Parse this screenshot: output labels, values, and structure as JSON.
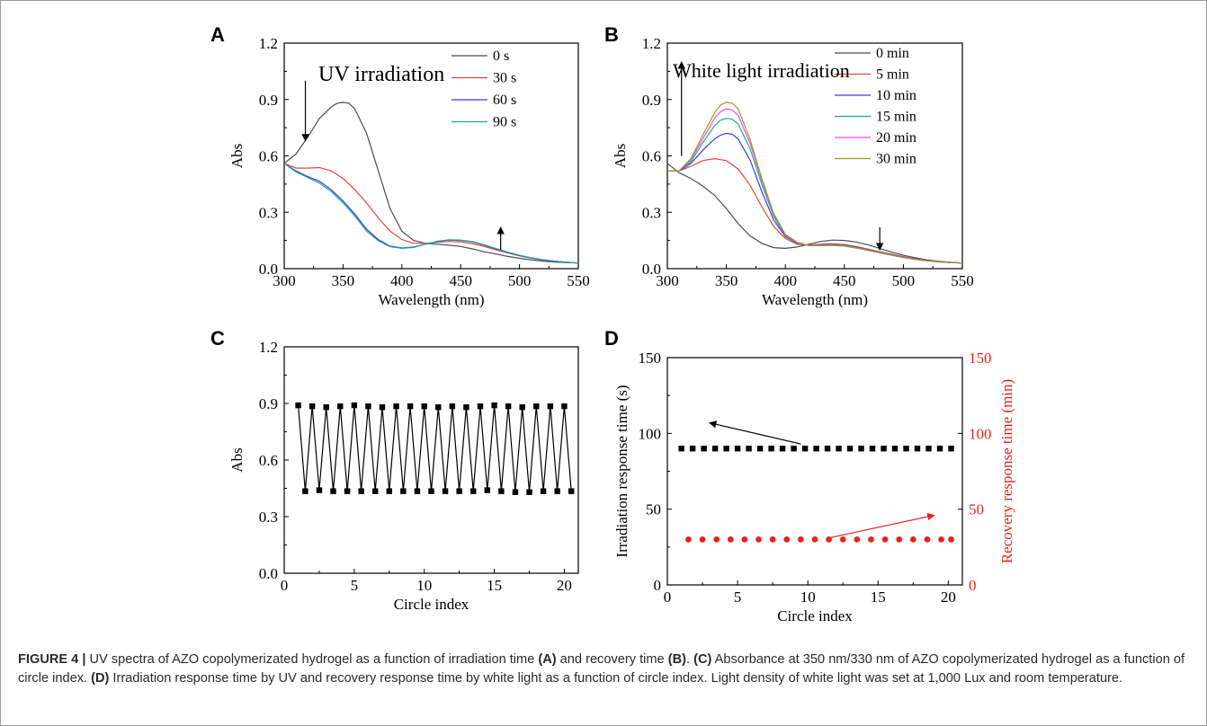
{
  "caption": {
    "label": "FIGURE 4 |",
    "segments": [
      {
        "t": "UV spectra of AZO copolymerizated hydrogel as a function of irradiation time ",
        "b": false
      },
      {
        "t": "(A)",
        "b": true
      },
      {
        "t": " and recovery time ",
        "b": false
      },
      {
        "t": "(B)",
        "b": true
      },
      {
        "t": ". ",
        "b": false
      },
      {
        "t": "(C)",
        "b": true
      },
      {
        "t": " Absorbance at 350 nm/330 nm of AZO copolymerizated hydrogel as a function of circle index. ",
        "b": false
      },
      {
        "t": "(D)",
        "b": true
      },
      {
        "t": " Irradiation response time by UV and recovery response time by white light as a function of circle index. Light density of white light was set at 1,000 Lux and room temperature.",
        "b": false
      }
    ]
  },
  "chart_data": [
    {
      "panel": "A",
      "type": "line",
      "annotation": "UV irradiation",
      "xlabel": "Wavelength (nm)",
      "ylabel": "Abs",
      "xlim": [
        300,
        550
      ],
      "ylim": [
        0,
        1.2
      ],
      "xticks": [
        300,
        350,
        400,
        450,
        500,
        550
      ],
      "yticks": [
        "0.0",
        "0.3",
        "0.6",
        "0.9",
        "1.2"
      ],
      "legend_position": "top-right",
      "arrows": [
        {
          "direction": "down",
          "x": 318,
          "y_from": 1.0,
          "y_to": 0.68
        },
        {
          "direction": "up",
          "x": 484,
          "y_from": 0.1,
          "y_to": 0.22
        }
      ],
      "series": [
        {
          "name": "0 s",
          "color": "#4d4d4d",
          "x": [
            300,
            310,
            320,
            330,
            340,
            345,
            350,
            355,
            360,
            370,
            380,
            390,
            400,
            410,
            420,
            430,
            440,
            450,
            460,
            470,
            480,
            490,
            500,
            510,
            520,
            530,
            540,
            550
          ],
          "y": [
            0.56,
            0.61,
            0.7,
            0.8,
            0.86,
            0.88,
            0.885,
            0.88,
            0.85,
            0.72,
            0.52,
            0.32,
            0.2,
            0.15,
            0.135,
            0.13,
            0.125,
            0.118,
            0.105,
            0.09,
            0.078,
            0.065,
            0.055,
            0.047,
            0.04,
            0.035,
            0.032,
            0.03
          ]
        },
        {
          "name": "30 s",
          "color": "#e8453c",
          "x": [
            300,
            310,
            320,
            330,
            340,
            350,
            360,
            370,
            380,
            390,
            400,
            410,
            420,
            430,
            440,
            450,
            460,
            470,
            480,
            490,
            500,
            510,
            520,
            530,
            540,
            550
          ],
          "y": [
            0.56,
            0.535,
            0.535,
            0.538,
            0.52,
            0.48,
            0.42,
            0.35,
            0.27,
            0.2,
            0.155,
            0.135,
            0.135,
            0.14,
            0.145,
            0.142,
            0.133,
            0.118,
            0.1,
            0.083,
            0.068,
            0.056,
            0.046,
            0.039,
            0.034,
            0.03
          ]
        },
        {
          "name": "60 s",
          "color": "#3a3ae0",
          "x": [
            300,
            310,
            320,
            330,
            340,
            350,
            360,
            370,
            380,
            390,
            400,
            410,
            420,
            430,
            440,
            450,
            460,
            470,
            480,
            490,
            500,
            510,
            520,
            530,
            540,
            550
          ],
          "y": [
            0.56,
            0.52,
            0.49,
            0.465,
            0.42,
            0.36,
            0.29,
            0.21,
            0.155,
            0.12,
            0.11,
            0.115,
            0.13,
            0.145,
            0.152,
            0.15,
            0.142,
            0.125,
            0.105,
            0.087,
            0.07,
            0.057,
            0.047,
            0.04,
            0.034,
            0.03
          ]
        },
        {
          "name": "90 s",
          "color": "#1ea89a",
          "x": [
            300,
            310,
            320,
            330,
            340,
            350,
            360,
            370,
            380,
            390,
            400,
            410,
            420,
            430,
            440,
            450,
            460,
            470,
            480,
            490,
            500,
            510,
            520,
            530,
            540,
            550
          ],
          "y": [
            0.56,
            0.515,
            0.485,
            0.455,
            0.41,
            0.35,
            0.28,
            0.2,
            0.148,
            0.117,
            0.108,
            0.113,
            0.13,
            0.146,
            0.154,
            0.152,
            0.144,
            0.127,
            0.107,
            0.088,
            0.071,
            0.058,
            0.048,
            0.04,
            0.034,
            0.03
          ]
        }
      ]
    },
    {
      "panel": "B",
      "type": "line",
      "annotation": "White light irradiation",
      "xlabel": "Wavelength (nm)",
      "ylabel": "Abs",
      "xlim": [
        300,
        550
      ],
      "ylim": [
        0,
        1.2
      ],
      "xticks": [
        300,
        350,
        400,
        450,
        500,
        550
      ],
      "yticks": [
        "0.0",
        "0.3",
        "0.6",
        "0.9",
        "1.2"
      ],
      "legend_position": "top-right",
      "arrows": [
        {
          "direction": "up",
          "x": 312,
          "y_from": 0.6,
          "y_to": 1.1
        },
        {
          "direction": "down",
          "x": 480,
          "y_from": 0.22,
          "y_to": 0.1
        }
      ],
      "series": [
        {
          "name": "0 min",
          "color": "#4d4d4d",
          "x": [
            300,
            310,
            320,
            330,
            340,
            350,
            360,
            370,
            380,
            390,
            400,
            410,
            420,
            430,
            440,
            450,
            460,
            470,
            480,
            490,
            500,
            510,
            520,
            530,
            540,
            550
          ],
          "y": [
            0.56,
            0.51,
            0.48,
            0.44,
            0.39,
            0.32,
            0.24,
            0.175,
            0.135,
            0.112,
            0.108,
            0.115,
            0.13,
            0.145,
            0.152,
            0.15,
            0.142,
            0.127,
            0.107,
            0.088,
            0.071,
            0.058,
            0.047,
            0.039,
            0.034,
            0.03
          ]
        },
        {
          "name": "5 min",
          "color": "#e8453c",
          "x": [
            300,
            310,
            320,
            330,
            340,
            350,
            360,
            370,
            380,
            390,
            400,
            410,
            420,
            430,
            440,
            450,
            460,
            470,
            480,
            490,
            500,
            510,
            520,
            530,
            540,
            550
          ],
          "y": [
            0.52,
            0.52,
            0.545,
            0.575,
            0.585,
            0.575,
            0.53,
            0.445,
            0.33,
            0.225,
            0.16,
            0.13,
            0.125,
            0.13,
            0.132,
            0.128,
            0.118,
            0.104,
            0.09,
            0.077,
            0.064,
            0.053,
            0.044,
            0.037,
            0.033,
            0.03
          ]
        },
        {
          "name": "10 min",
          "color": "#3a3ae0",
          "x": [
            300,
            310,
            320,
            330,
            340,
            345,
            350,
            355,
            360,
            370,
            380,
            390,
            400,
            410,
            420,
            430,
            440,
            450,
            460,
            470,
            480,
            490,
            500,
            510,
            520,
            530,
            540,
            550
          ],
          "y": [
            0.52,
            0.52,
            0.56,
            0.63,
            0.69,
            0.71,
            0.72,
            0.715,
            0.69,
            0.58,
            0.41,
            0.26,
            0.17,
            0.135,
            0.125,
            0.127,
            0.128,
            0.124,
            0.114,
            0.1,
            0.087,
            0.074,
            0.062,
            0.052,
            0.043,
            0.037,
            0.033,
            0.03
          ]
        },
        {
          "name": "15 min",
          "color": "#1ea89a",
          "x": [
            300,
            310,
            320,
            330,
            340,
            345,
            350,
            355,
            360,
            370,
            380,
            390,
            400,
            410,
            420,
            430,
            440,
            450,
            460,
            470,
            480,
            490,
            500,
            510,
            520,
            530,
            540,
            550
          ],
          "y": [
            0.52,
            0.52,
            0.57,
            0.67,
            0.76,
            0.79,
            0.8,
            0.795,
            0.77,
            0.64,
            0.45,
            0.28,
            0.175,
            0.137,
            0.124,
            0.125,
            0.126,
            0.122,
            0.112,
            0.099,
            0.086,
            0.073,
            0.061,
            0.051,
            0.043,
            0.037,
            0.033,
            0.03
          ]
        },
        {
          "name": "20 min",
          "color": "#f04ce8",
          "x": [
            300,
            310,
            320,
            330,
            340,
            345,
            350,
            355,
            360,
            370,
            380,
            390,
            400,
            410,
            420,
            430,
            440,
            450,
            460,
            470,
            480,
            490,
            500,
            510,
            520,
            530,
            540,
            550
          ],
          "y": [
            0.52,
            0.52,
            0.58,
            0.69,
            0.8,
            0.835,
            0.85,
            0.845,
            0.815,
            0.67,
            0.47,
            0.29,
            0.18,
            0.139,
            0.124,
            0.124,
            0.125,
            0.121,
            0.111,
            0.098,
            0.085,
            0.072,
            0.06,
            0.05,
            0.042,
            0.036,
            0.033,
            0.03
          ]
        },
        {
          "name": "30 min",
          "color": "#9a9a22",
          "x": [
            300,
            310,
            320,
            330,
            340,
            345,
            350,
            355,
            360,
            370,
            380,
            390,
            400,
            410,
            420,
            430,
            440,
            450,
            460,
            470,
            480,
            490,
            500,
            510,
            520,
            530,
            540,
            550
          ],
          "y": [
            0.52,
            0.52,
            0.585,
            0.71,
            0.83,
            0.87,
            0.885,
            0.88,
            0.85,
            0.69,
            0.48,
            0.295,
            0.183,
            0.14,
            0.124,
            0.123,
            0.124,
            0.12,
            0.11,
            0.097,
            0.084,
            0.071,
            0.059,
            0.049,
            0.041,
            0.036,
            0.032,
            0.03
          ]
        }
      ]
    },
    {
      "panel": "C",
      "type": "line",
      "xlabel": "Circle index",
      "ylabel": "Abs",
      "xlim": [
        0,
        21
      ],
      "ylim": [
        0,
        1.2
      ],
      "xticks": [
        0,
        5,
        10,
        15,
        20
      ],
      "yticks": [
        "0.0",
        "0.3",
        "0.6",
        "0.9",
        "1.2"
      ],
      "series": [
        {
          "name": "",
          "color": "#000000",
          "marker": "square",
          "x": [
            1,
            1.5,
            2,
            2.5,
            3,
            3.5,
            4,
            4.5,
            5,
            5.5,
            6,
            6.5,
            7,
            7.5,
            8,
            8.5,
            9,
            9.5,
            10,
            10.5,
            11,
            11.5,
            12,
            12.5,
            13,
            13.5,
            14,
            14.5,
            15,
            15.5,
            16,
            16.5,
            17,
            17.5,
            18,
            18.5,
            19,
            19.5,
            20,
            20.5
          ],
          "y": [
            0.89,
            0.435,
            0.885,
            0.44,
            0.88,
            0.435,
            0.885,
            0.435,
            0.89,
            0.435,
            0.885,
            0.435,
            0.88,
            0.435,
            0.885,
            0.435,
            0.885,
            0.435,
            0.885,
            0.435,
            0.88,
            0.435,
            0.885,
            0.435,
            0.88,
            0.435,
            0.885,
            0.44,
            0.89,
            0.435,
            0.885,
            0.43,
            0.88,
            0.43,
            0.885,
            0.435,
            0.885,
            0.435,
            0.885,
            0.435
          ]
        }
      ]
    },
    {
      "panel": "D",
      "type": "scatter",
      "xlabel": "Circle index",
      "ylabel": "Irradiation response time (s)",
      "ylabel_right": "Recovery response time (min)",
      "right_axis_color": "#e8231a",
      "xlim": [
        0,
        21
      ],
      "ylim": [
        0,
        150
      ],
      "ylim_right": [
        0,
        150
      ],
      "xticks": [
        0,
        5,
        10,
        15,
        20
      ],
      "yticks": [
        0,
        50,
        100,
        150
      ],
      "yticks_right": [
        0,
        50,
        100,
        150
      ],
      "arrows": [
        {
          "axis": "left",
          "color": "#000000",
          "x_from": 9.5,
          "y_from": 93,
          "x_to": 3.0,
          "y_to": 107
        },
        {
          "axis": "right",
          "color": "#e8231a",
          "x_from": 11.5,
          "y_from": 31,
          "x_to": 19.0,
          "y_to": 46
        }
      ],
      "series": [
        {
          "name": "",
          "axis": "left",
          "color": "#000000",
          "marker": "square",
          "x": [
            1,
            1.8,
            2.6,
            3.4,
            4.2,
            5,
            5.8,
            6.6,
            7.4,
            8.2,
            9,
            9.8,
            10.6,
            11.4,
            12.2,
            13,
            13.8,
            14.6,
            15.4,
            16.2,
            17,
            17.8,
            18.6,
            19.4,
            20.2
          ],
          "y": [
            90,
            90,
            90,
            90,
            90,
            90,
            90,
            90,
            90,
            90,
            90,
            90,
            90,
            90,
            90,
            90,
            90,
            90,
            90,
            90,
            90,
            90,
            90,
            90,
            90
          ]
        },
        {
          "name": "",
          "axis": "right",
          "color": "#e8231a",
          "marker": "circle",
          "x": [
            1.5,
            2.5,
            3.5,
            4.5,
            5.5,
            6.5,
            7.5,
            8.5,
            9.5,
            10.5,
            11.5,
            12.5,
            13.5,
            14.5,
            15.5,
            16.5,
            17.5,
            18.5,
            19.5,
            20.2
          ],
          "y": [
            30,
            30,
            30,
            30,
            30,
            30,
            30,
            30,
            30,
            30,
            30,
            30,
            30,
            30,
            30,
            30,
            30,
            30,
            30,
            30
          ]
        }
      ]
    }
  ]
}
